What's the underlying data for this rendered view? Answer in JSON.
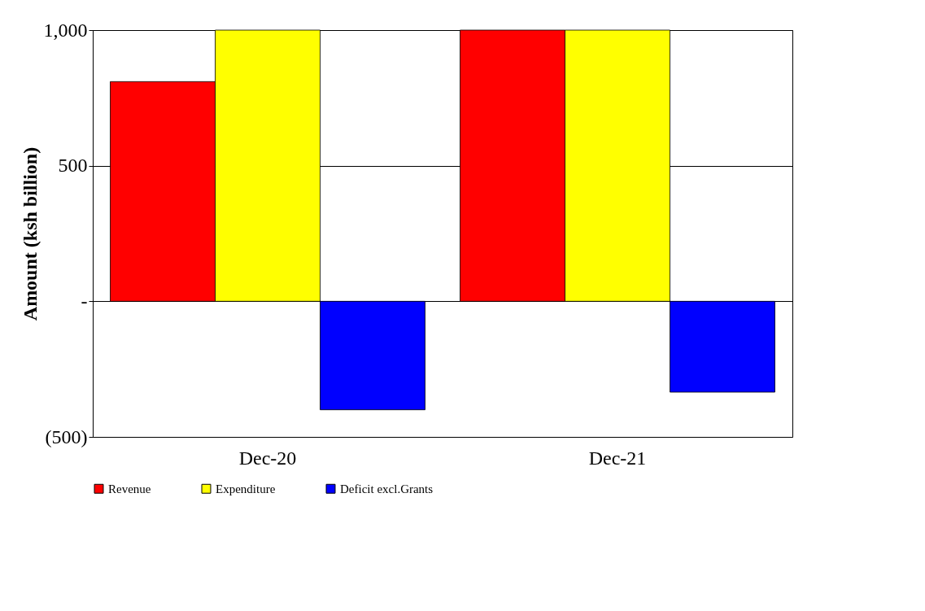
{
  "chart_data": {
    "type": "bar",
    "ylabel": "Amount  (ksh billion)",
    "categories": [
      "Dec-20",
      "Dec-21"
    ],
    "series": [
      {
        "name": "Revenue",
        "color": "#ff0000",
        "values": [
          810,
          1000
        ]
      },
      {
        "name": "Expenditure",
        "color": "#ffff00",
        "values": [
          1000,
          1000
        ]
      },
      {
        "name": "Deficit excl.Grants",
        "color": "#0000ff",
        "values": [
          -400,
          -335
        ]
      }
    ],
    "ylim": [
      -500,
      1000
    ],
    "yticks": [
      {
        "value": -500,
        "label": "(500)"
      },
      {
        "value": 0,
        "label": "-"
      },
      500,
      {
        "value": 1000,
        "label": "1,000"
      }
    ],
    "grid": "y",
    "legend": "bottom"
  }
}
